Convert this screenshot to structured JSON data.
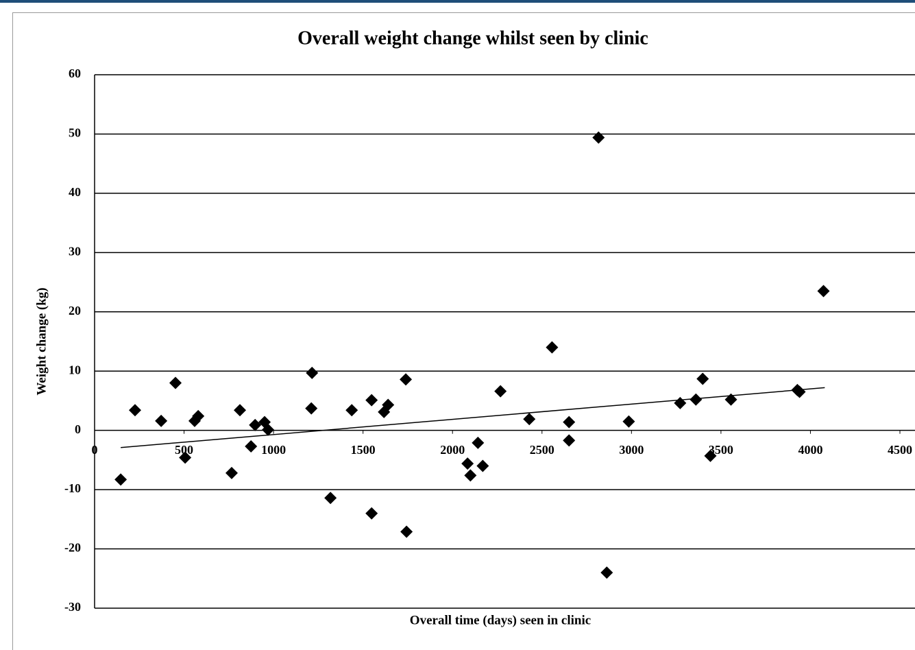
{
  "chart_data": {
    "type": "scatter",
    "title": "Overall weight change whilst seen by clinic",
    "x_label": "Overall time (days) seen in clinic",
    "y_label": "Weight change (kg)",
    "xlim": [
      0,
      4500
    ],
    "xticks": [
      0,
      500,
      1000,
      1500,
      2000,
      2500,
      3000,
      3500,
      4000,
      4500
    ],
    "ylim": [
      -30,
      60
    ],
    "yticks": [
      -30,
      -20,
      -10,
      0,
      10,
      20,
      30,
      40,
      50,
      60
    ],
    "grid": true,
    "color": "#000000",
    "x": [
      146,
      226,
      372,
      452,
      506,
      559,
      579,
      766,
      812,
      874,
      897,
      950,
      969,
      1211,
      1215,
      1318,
      1437,
      1548,
      1548,
      1617,
      1640,
      1739,
      1743,
      2084,
      2100,
      2142,
      2169,
      2268,
      2429,
      2556,
      2651,
      2651,
      2816,
      2862,
      2985,
      3272,
      3360,
      3398,
      3441,
      3556,
      3927,
      3939,
      4073
    ],
    "y": [
      -8.3,
      3.4,
      1.6,
      8.0,
      -4.6,
      1.6,
      2.4,
      -7.2,
      3.4,
      -2.7,
      0.9,
      1.4,
      0.1,
      3.7,
      9.7,
      -11.4,
      3.4,
      5.1,
      -14.0,
      3.1,
      4.3,
      8.6,
      -17.1,
      -5.6,
      -7.6,
      -2.1,
      -6.0,
      6.6,
      1.9,
      14.0,
      1.4,
      -1.7,
      49.4,
      -24.0,
      1.5,
      4.6,
      5.2,
      8.7,
      -4.3,
      5.2,
      6.8,
      6.5,
      23.5
    ],
    "trendline": {
      "x": [
        146,
        4080
      ],
      "y": [
        -2.9,
        7.2
      ]
    }
  }
}
